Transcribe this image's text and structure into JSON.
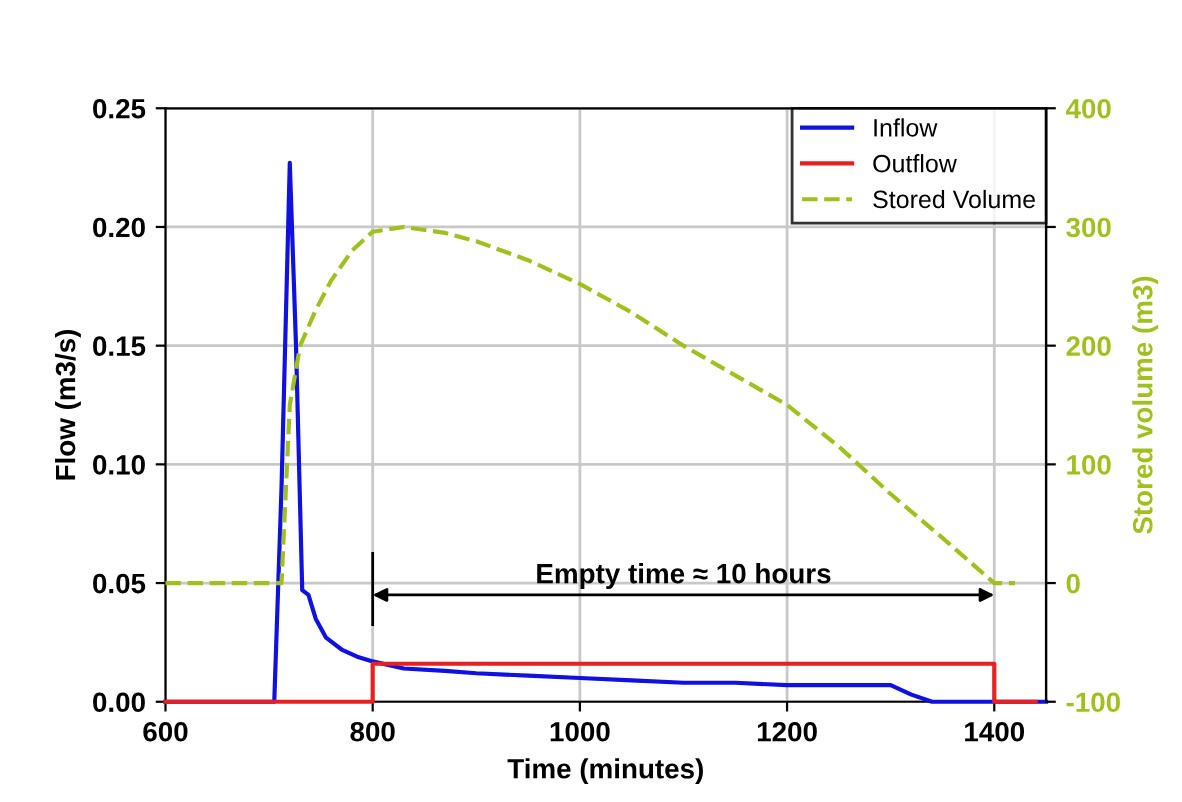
{
  "chart_data": {
    "type": "line",
    "xlabel": "Time (minutes)",
    "ylabel": "Flow (m3/s)",
    "y2label": "Stored volume (m3)",
    "xlim": [
      600,
      1450
    ],
    "xticks": [
      600,
      800,
      1000,
      1200,
      1400
    ],
    "ylim": [
      0,
      0.25
    ],
    "yticks": [
      {
        "value": 0,
        "label": "0.00"
      },
      {
        "value": 0.05,
        "label": "0.05"
      },
      {
        "value": 0.1,
        "label": "0.10"
      },
      {
        "value": 0.15,
        "label": "0.15"
      },
      {
        "value": 0.2,
        "label": "0.20"
      },
      {
        "value": 0.25,
        "label": "0.25"
      }
    ],
    "y2lim": [
      -100,
      400
    ],
    "y2ticks": [
      -100,
      0,
      100,
      200,
      300,
      400
    ],
    "grid": true,
    "legend": "top right",
    "series": [
      {
        "name": "Inflow",
        "color": "#1010e0",
        "line_style": "solid",
        "x": [
          600,
          705,
          712,
          720,
          726,
          732,
          738,
          745,
          755,
          770,
          785,
          800,
          830,
          870,
          900,
          950,
          1000,
          1050,
          1100,
          1150,
          1200,
          1250,
          1300,
          1320,
          1340,
          1450
        ],
        "values": [
          0,
          0,
          0.09,
          0.227,
          0.15,
          0.047,
          0.045,
          0.035,
          0.027,
          0.022,
          0.019,
          0.017,
          0.014,
          0.013,
          0.012,
          0.011,
          0.01,
          0.009,
          0.008,
          0.008,
          0.007,
          0.007,
          0.007,
          0.003,
          0,
          0
        ]
      },
      {
        "name": "Outflow",
        "color": "#e82020",
        "line_style": "solid",
        "x": [
          600,
          800,
          800,
          1400,
          1400,
          1440
        ],
        "values": [
          0,
          0,
          0.016,
          0.016,
          0,
          0
        ]
      },
      {
        "name": "Stored Volume",
        "color": "#a0c020",
        "line_style": "dashed",
        "axis": "y2",
        "x": [
          600,
          712,
          720,
          730,
          745,
          760,
          780,
          800,
          830,
          870,
          900,
          950,
          1000,
          1050,
          1100,
          1150,
          1200,
          1250,
          1300,
          1350,
          1400,
          1420
        ],
        "values": [
          0,
          0,
          150,
          200,
          230,
          255,
          280,
          296,
          300,
          295,
          288,
          272,
          252,
          228,
          200,
          175,
          150,
          115,
          75,
          38,
          0,
          0
        ]
      }
    ],
    "annotations": [
      "Empty time ≈ 10 hours"
    ]
  }
}
